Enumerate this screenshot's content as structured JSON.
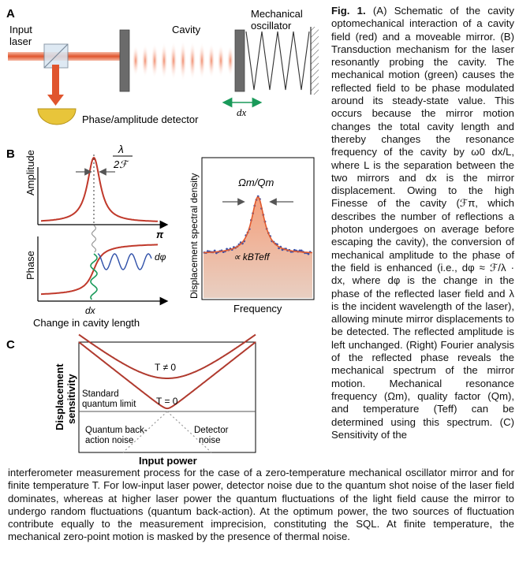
{
  "panelA": {
    "letter": "A",
    "input_laser": [
      "Input",
      "laser"
    ],
    "cavity": "Cavity",
    "mechanical_oscillator": [
      "Mechanical",
      "oscillator"
    ],
    "detector": "Phase/amplitude detector",
    "dx": "dx",
    "colors": {
      "laser": "#e0552e",
      "motion": "#1a9a5a",
      "detector": "#e8c53a",
      "mirror": "#6b6b6b"
    }
  },
  "panelB": {
    "letter": "B",
    "lambda_label": "λ",
    "two_f_label": "2ℱ",
    "amplitude": "Amplitude",
    "phase": "Phase",
    "pi": "π",
    "dphi": "dφ",
    "dx": "dx",
    "xlabel": "Change in cavity length",
    "spectrum_ylabel": "Displacement spectral density",
    "spectrum_xlabel": "Frequency",
    "omega_q": "Ωm/Qm",
    "kbt": "∝ kBTeff"
  },
  "panelC": {
    "letter": "C",
    "ylabel": [
      "Displacement",
      "sensitivity"
    ],
    "xlabel": "Input power",
    "t_nonzero": "T ≠ 0",
    "t_zero": "T = 0",
    "sql": [
      "Standard",
      "quantum limit"
    ],
    "backaction": [
      "Quantum back-",
      "action noise"
    ],
    "detector_noise": [
      "Detector",
      "noise"
    ]
  },
  "caption_right": "(A) Schematic of the cavity optomechanical interaction of a cavity field (red) and a moveable mirror. (B) Transduction mechanism for the laser resonantly probing the cavity. The mechanical motion (green) causes the reflected field to be phase modulated around its steady-state value. This occurs because the mirror motion changes the total cavity length and thereby changes the resonance frequency of the cavity by ω0 dx/L, where L is the separation between the two mirrors and dx is the mirror displacement. Owing to the high Finesse of the cavity (ℱπ, which describes the number of reflections a photon undergoes on average before escaping the cavity), the conversion of mechanical amplitude to the phase of the field is enhanced (i.e., dφ ≈ ℱ/λ · dx, where dφ is the change in the phase of the reflected laser field and λ is the incident wavelength of the laser), allowing minute mirror displacements to be detected. The reflected amplitude is left unchanged. (Right) Fourier analysis of the reflected phase reveals the mechanical spectrum of the mirror motion. Mechanical resonance frequency (Ωm), quality factor (Qm), and temperature (Teff) can be determined using this spectrum. (C) Sensitivity of the",
  "caption_label": "Fig. 1.",
  "caption_bottom": "interferometer measurement process for the case of a zero-temperature mechanical oscillator mirror and for finite temperature T. For low-input laser power, detector noise due to the quantum shot noise of the laser field dominates, whereas at higher laser power the quantum fluctuations of the light field cause the mirror to undergo random fluctuations (quantum back-action). At the optimum power, the two sources of fluctuation contribute equally to the measurement imprecision, constituting the SQL. At finite temperature, the mechanical zero-point motion is masked by the presence of thermal noise."
}
